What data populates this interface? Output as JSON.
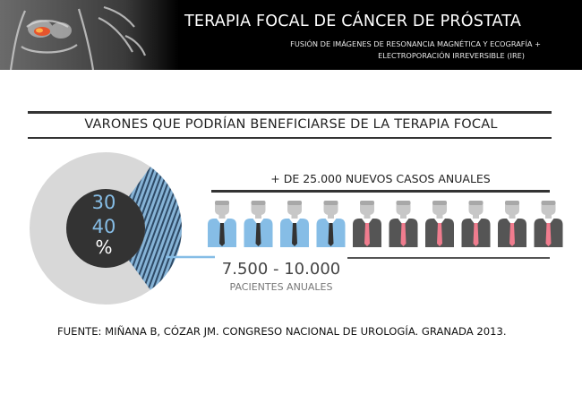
{
  "header": {
    "title": "TERAPIA FOCAL DE CÁNCER DE PRÓSTATA",
    "subtitle_line1": "FUSIÓN DE IMÁGENES DE RESONANCIA MAGNÉTICA Y ECOGRAFÍA  +",
    "subtitle_line2": "ELECTROPORACIÓN IRREVERSIBLE (IRE)",
    "image_icon": "pelvis-prostate-illustration"
  },
  "section_title": "VARONES QUE PODRÍAN BENEFICIARSE DE LA TERAPIA FOCAL",
  "chart_data": {
    "type": "pie",
    "center_label": {
      "line1": "30",
      "line2": "40",
      "unit": "%"
    },
    "share_range_percent": [
      30,
      40
    ],
    "colors": {
      "highlight": "#86b3d6",
      "stripes": "#2e4a66",
      "rest": "#d8d8d8",
      "center": "#333333"
    }
  },
  "people_graphic": {
    "caption_total": "+ DE 25.000 NUEVOS CASOS ANUALES",
    "highlight_range": "7.500 - 10.000",
    "highlight_label": "PACIENTES ANUALES",
    "total_icons": 10,
    "highlighted_icons": 4,
    "colors": {
      "highlight_shirt": "#86bde6",
      "rest_shirt": "#555555",
      "highlight_tie": "#333333",
      "rest_tie": "#f07c8e",
      "skin": "#c7c7c7"
    }
  },
  "source": "FUENTE: MIÑANA B, CÓZAR JM. CONGRESO NACIONAL DE UROLOGÍA. GRANADA 2013."
}
